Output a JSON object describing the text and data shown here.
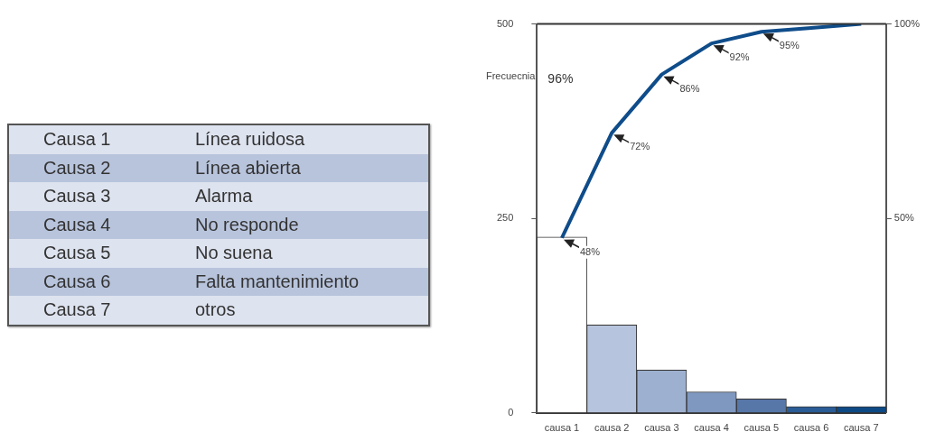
{
  "chart_data": [
    {
      "type": "other",
      "categories": [
        "Causa 1",
        "Causa 2",
        "Causa 3",
        "Causa 4",
        "Causa 5",
        "Causa 6",
        "Causa 7"
      ],
      "annotations": [
        "Línea ruidosa",
        "Línea abierta",
        "Alarma",
        "No responde",
        "No suena",
        "Falta mantenimiento",
        "otros"
      ]
    },
    {
      "type": "bar",
      "ylabel": "Frecuecnia",
      "categories": [
        "causa 1",
        "causa 2",
        "causa 3",
        "causa 4",
        "causa 5",
        "causa 6",
        "causa 7"
      ],
      "series": [
        {
          "type": "bar",
          "colors": [
            "#ffffff",
            "#b7c4dd",
            "#9eb0d0",
            "#7f98c0",
            "#5677a8",
            "#2a5c96",
            "#0d4a85"
          ],
          "values": [
            226,
            113,
            55,
            27,
            18,
            8,
            8
          ]
        },
        {
          "type": "line",
          "axis": "y2",
          "color": "#0f4c8a",
          "values": [
            45,
            72,
            87,
            95,
            98,
            99,
            100
          ]
        }
      ],
      "ylim": [
        0,
        500
      ],
      "yticks": [
        0,
        250,
        500
      ],
      "y2lim": [
        0,
        100
      ],
      "y2ticks": [
        {
          "value": 50,
          "label": "50%"
        },
        {
          "value": 100,
          "label": "100%"
        }
      ],
      "grid": false,
      "legend": false,
      "marker": "none",
      "annotations": [
        "96%",
        {
          "text": "48%",
          "x": "causa 1",
          "y": 225
        },
        {
          "text": "72%",
          "x": "causa 2",
          "y": 360
        },
        {
          "text": "86%",
          "x": "causa 3",
          "y": 435
        },
        {
          "text": "92%",
          "x": "causa 4",
          "y": 475
        },
        {
          "text": "95%",
          "x": "causa 5",
          "y": 490
        }
      ]
    }
  ]
}
